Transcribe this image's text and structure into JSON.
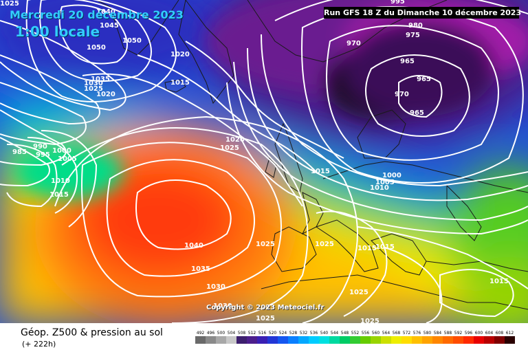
{
  "header": {
    "date": "Mercredi 20 décembre 2023",
    "time": "1:00 locale"
  },
  "run_info": "Run GFS 18 Z du Dimanche 10 décembre 2023",
  "copyright": "Copyright © 2023 Meteociel.fr",
  "footer": {
    "title": "Géop. Z500 & pression au sol",
    "subtitle": "(+ 222h)"
  },
  "isobar_labels": [
    {
      "text": "1025"
    },
    {
      "text": "1040"
    },
    {
      "text": "1045"
    },
    {
      "text": "1050"
    },
    {
      "text": "1050"
    },
    {
      "text": "1020"
    },
    {
      "text": "1035"
    },
    {
      "text": "1030"
    },
    {
      "text": "1025"
    },
    {
      "text": "1020"
    },
    {
      "text": "1015"
    },
    {
      "text": "985"
    },
    {
      "text": "990"
    },
    {
      "text": "995"
    },
    {
      "text": "1000"
    },
    {
      "text": "1005"
    },
    {
      "text": "1010"
    },
    {
      "text": "1015"
    },
    {
      "text": "1020"
    },
    {
      "text": "1025"
    },
    {
      "text": "1040"
    },
    {
      "text": "1035"
    },
    {
      "text": "1030"
    },
    {
      "text": "1030"
    },
    {
      "text": "1025"
    },
    {
      "text": "1025"
    },
    {
      "text": "1015"
    },
    {
      "text": "1025"
    },
    {
      "text": "1015"
    },
    {
      "text": "1015"
    },
    {
      "text": "1025"
    },
    {
      "text": "1025"
    },
    {
      "text": "1015"
    },
    {
      "text": "995"
    },
    {
      "text": "980"
    },
    {
      "text": "975"
    },
    {
      "text": "970"
    },
    {
      "text": "965"
    },
    {
      "text": "965"
    },
    {
      "text": "970"
    },
    {
      "text": "965"
    },
    {
      "text": "1000"
    },
    {
      "text": "1005"
    },
    {
      "text": "1010"
    }
  ],
  "scale": {
    "labels": [
      "492",
      "496",
      "500",
      "504",
      "508",
      "512",
      "516",
      "520",
      "524",
      "528",
      "532",
      "536",
      "540",
      "544",
      "548",
      "552",
      "556",
      "560",
      "564",
      "568",
      "572",
      "576",
      "580",
      "584",
      "588",
      "592",
      "596",
      "600",
      "604",
      "608",
      "612"
    ],
    "colors": [
      "#6a6a6a",
      "#8a8a8a",
      "#a8a8a8",
      "#c8c8c8",
      "#3d1f6e",
      "#4c1e8c",
      "#3a1fb3",
      "#2236d6",
      "#1557f0",
      "#0a7fff",
      "#04a8ff",
      "#00ccff",
      "#00e0e0",
      "#00d9a0",
      "#00cc66",
      "#33cc33",
      "#66cc00",
      "#99d400",
      "#cce000",
      "#eeee00",
      "#ffdd00",
      "#ffc000",
      "#ffa300",
      "#ff8600",
      "#ff6a00",
      "#ff4d00",
      "#ff2a00",
      "#e80000",
      "#b80000",
      "#800000",
      "#2a0000"
    ]
  }
}
